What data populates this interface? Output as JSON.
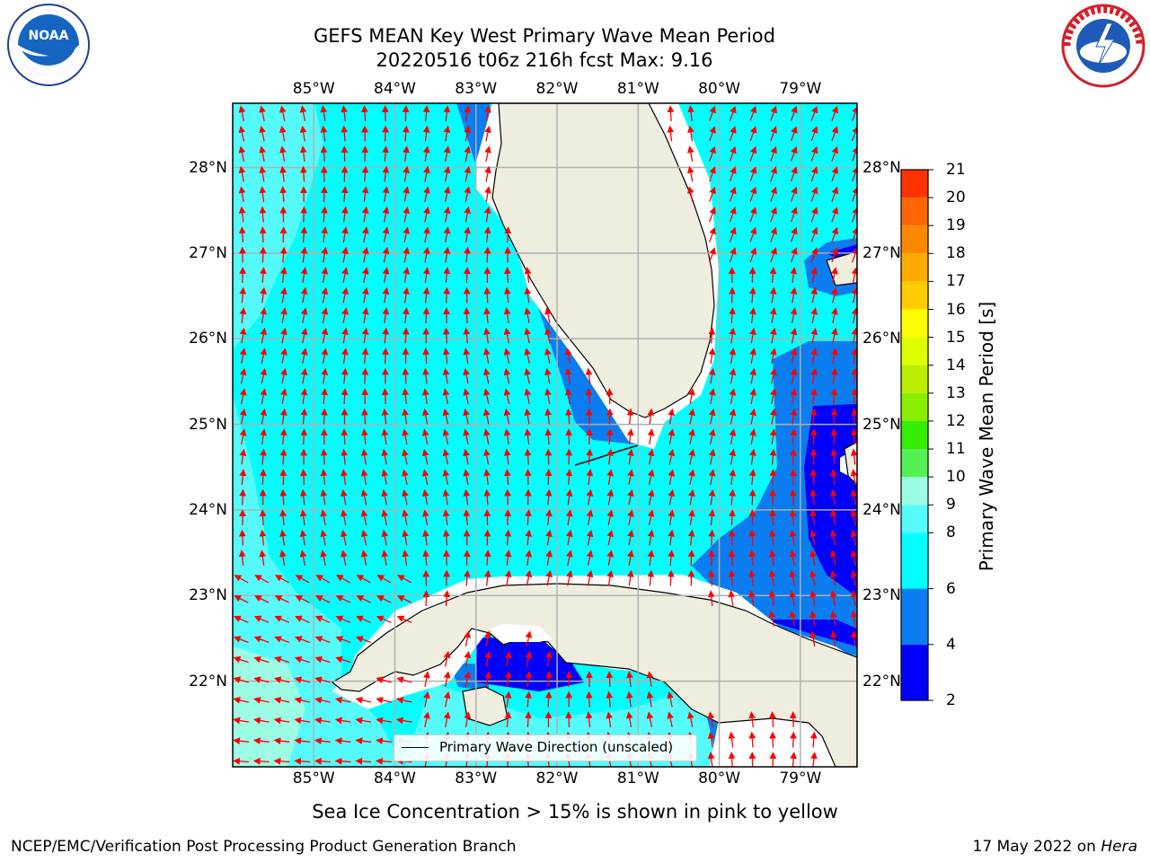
{
  "title": {
    "line1": "GEFS MEAN Key West Primary Wave Mean Period",
    "line2": "20220516 t06z 216h fcst   Max: 9.16"
  },
  "logos": {
    "left": {
      "icon": "noaa-logo",
      "text": "NOAA",
      "ring_text": "NATIONAL OCEANIC AND ATMOSPHERIC ADMINISTRATION · U.S. DEPARTMENT OF COMMERCE"
    },
    "right": {
      "icon": "national-weather-service-logo",
      "ring_text": "NATIONAL WEATHER SERVICE"
    }
  },
  "map": {
    "lon_range": [
      -86.0,
      -78.3
    ],
    "lat_range": [
      21.0,
      28.75
    ],
    "lon_ticks": [
      {
        "value": -85,
        "label": "85°W"
      },
      {
        "value": -84,
        "label": "84°W"
      },
      {
        "value": -83,
        "label": "83°W"
      },
      {
        "value": -82,
        "label": "82°W"
      },
      {
        "value": -81,
        "label": "81°W"
      },
      {
        "value": -80,
        "label": "80°W"
      },
      {
        "value": -79,
        "label": "79°W"
      }
    ],
    "lat_ticks": [
      {
        "value": 28,
        "label": "28°N"
      },
      {
        "value": 27,
        "label": "27°N"
      },
      {
        "value": 26,
        "label": "26°N"
      },
      {
        "value": 25,
        "label": "25°N"
      },
      {
        "value": 24,
        "label": "24°N"
      },
      {
        "value": 23,
        "label": "23°N"
      },
      {
        "value": 22,
        "label": "22°N"
      }
    ],
    "gridlines": true,
    "land_color": "#efedde",
    "arrow_color": "#ff0000",
    "coastline_color": "#000000",
    "legend": {
      "label": "Primary Wave Direction (unscaled)",
      "placement": "bottom-center"
    }
  },
  "colorbar": {
    "label": "Primary Wave Mean Period [s]",
    "ticks": [
      "21",
      "20",
      "19",
      "18",
      "17",
      "16",
      "15",
      "14",
      "13",
      "12",
      "11",
      "10",
      "9",
      "8",
      "6",
      "4",
      "2"
    ],
    "bounds": [
      2,
      4,
      6,
      8,
      9,
      10,
      11,
      12,
      13,
      14,
      15,
      16,
      17,
      18,
      19,
      20,
      21
    ],
    "colors": [
      "#0000ff",
      "#0a7df0",
      "#00ffff",
      "#55fbfb",
      "#9bfde4",
      "#55f055",
      "#33ee00",
      "#88ee00",
      "#bbee00",
      "#ddff00",
      "#ffff00",
      "#ffcc00",
      "#ffaa00",
      "#ff8800",
      "#ff6600",
      "#ff3300",
      "#ff0000"
    ]
  },
  "notes": {
    "sea_ice": "Sea Ice Concentration > 15% is shown in pink to yellow",
    "footer_left": "NCEP/EMC/Verification Post Processing Product Generation Branch",
    "footer_right_date": "17 May 2022 on ",
    "footer_right_host": "Hera"
  }
}
